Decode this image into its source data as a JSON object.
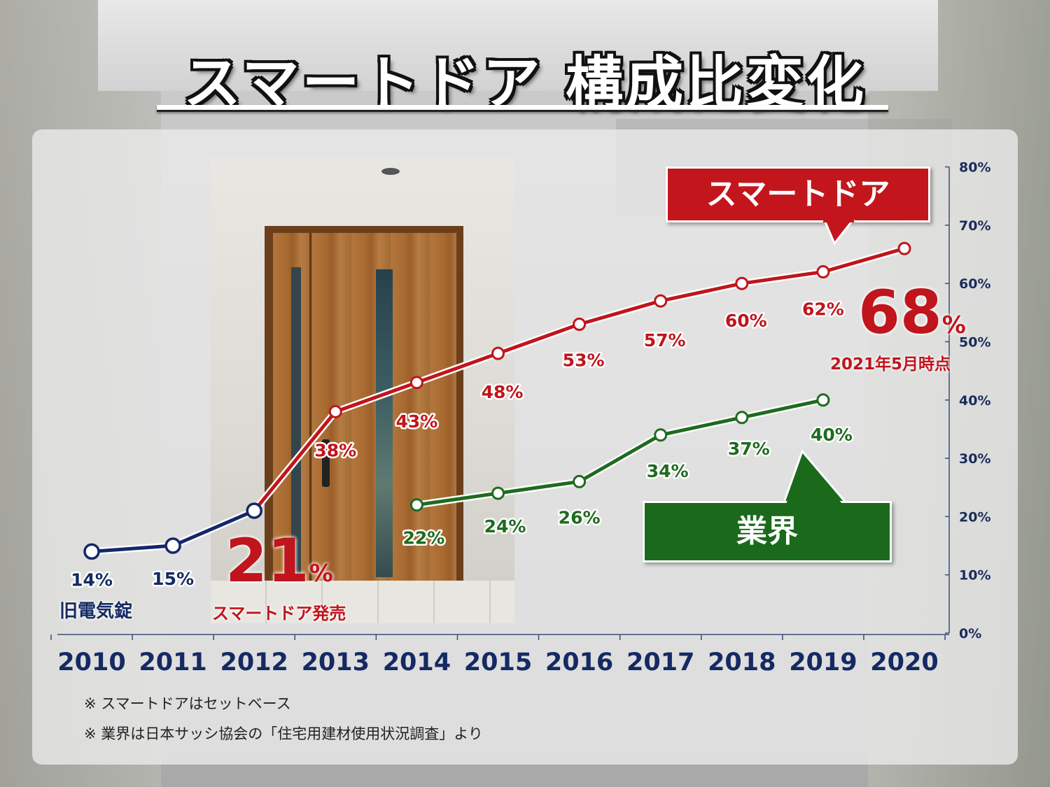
{
  "title": "スマートドア 構成比変化",
  "chart_data": {
    "type": "line",
    "categories": [
      "2010",
      "2011",
      "2012",
      "2013",
      "2014",
      "2015",
      "2016",
      "2017",
      "2018",
      "2019",
      "2020"
    ],
    "series": [
      {
        "name": "旧電気錠",
        "color": "#14276b",
        "points": [
          {
            "x": "2010",
            "y": 14
          },
          {
            "x": "2011",
            "y": 15
          },
          {
            "x": "2012",
            "y": 21
          }
        ]
      },
      {
        "name": "スマートドア",
        "color": "#c0151c",
        "points": [
          {
            "x": "2012",
            "y": 21
          },
          {
            "x": "2013",
            "y": 38
          },
          {
            "x": "2014",
            "y": 43
          },
          {
            "x": "2015",
            "y": 48
          },
          {
            "x": "2016",
            "y": 53
          },
          {
            "x": "2017",
            "y": 57
          },
          {
            "x": "2018",
            "y": 60
          },
          {
            "x": "2019",
            "y": 62
          },
          {
            "x": "2020",
            "y": 66
          }
        ]
      },
      {
        "name": "業界",
        "color": "#1f6b1f",
        "points": [
          {
            "x": "2014",
            "y": 22
          },
          {
            "x": "2015",
            "y": 24
          },
          {
            "x": "2016",
            "y": 26
          },
          {
            "x": "2017",
            "y": 34
          },
          {
            "x": "2018",
            "y": 37
          },
          {
            "x": "2019",
            "y": 40
          }
        ]
      }
    ],
    "data_labels": [
      {
        "text": "14%",
        "color": "navy"
      },
      {
        "text": "15%",
        "color": "navy"
      },
      {
        "text": "38%",
        "color": "red"
      },
      {
        "text": "43%",
        "color": "red"
      },
      {
        "text": "48%",
        "color": "red"
      },
      {
        "text": "53%",
        "color": "red"
      },
      {
        "text": "57%",
        "color": "red"
      },
      {
        "text": "60%",
        "color": "red"
      },
      {
        "text": "62%",
        "color": "red"
      },
      {
        "text": "22%",
        "color": "green"
      },
      {
        "text": "24%",
        "color": "green"
      },
      {
        "text": "26%",
        "color": "green"
      },
      {
        "text": "34%",
        "color": "green"
      },
      {
        "text": "37%",
        "color": "green"
      },
      {
        "text": "40%",
        "color": "green"
      }
    ],
    "y_axis": {
      "position": "right",
      "ylim": [
        0,
        80
      ],
      "ticks": [
        "0%",
        "10%",
        "20%",
        "30%",
        "40%",
        "50%",
        "60%",
        "70%",
        "80%"
      ]
    },
    "grid": false
  },
  "annotations": {
    "smartdoor_callout": "スマートドア",
    "industry_callout": "業界",
    "old_lock_label": "旧電気錠",
    "launch_value": "21",
    "launch_unit": "%",
    "launch_label": "スマートドア発売",
    "latest_value": "68",
    "latest_unit": "%",
    "latest_label": "2021年5月時点"
  },
  "notes": [
    "※ スマートドアはセットベース",
    "※ 業界は日本サッシ協会の「住宅用建材使用状況調査」より"
  ],
  "colors": {
    "red": "#c0151c",
    "green": "#1f6b1f",
    "navy": "#14276b"
  }
}
